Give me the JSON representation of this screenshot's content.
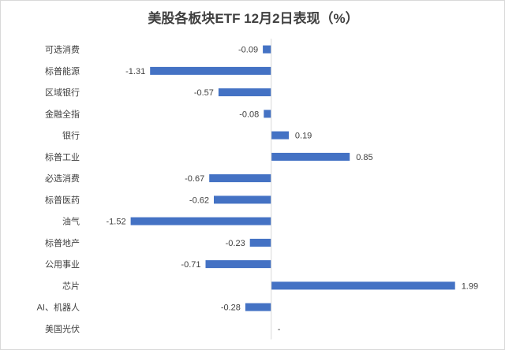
{
  "chart_data": {
    "type": "bar",
    "orientation": "horizontal",
    "title": "美股各板块ETF  12月2日表现（%）",
    "categories": [
      "可选消费",
      "标普能源",
      "区域银行",
      "金融全指",
      "银行",
      "标普工业",
      "必选消费",
      "标普医药",
      "油气",
      "标普地产",
      "公用事业",
      "芯片",
      "AI、机器人",
      "美国光伏"
    ],
    "values": [
      -0.09,
      -1.31,
      -0.57,
      -0.08,
      0.19,
      0.85,
      -0.67,
      -0.62,
      -1.52,
      -0.23,
      -0.71,
      1.99,
      -0.28,
      null
    ],
    "data_labels": [
      "-0.09",
      "-1.31",
      "-0.57",
      "-0.08",
      "0.19",
      "0.85",
      "-0.67",
      "-0.62",
      "-1.52",
      "-0.23",
      "-0.71",
      "1.99",
      "-0.28",
      "-"
    ],
    "xlim": [
      -1.85,
      2.3
    ],
    "bar_color": "#4472c4",
    "grid": false,
    "legend": "none"
  }
}
